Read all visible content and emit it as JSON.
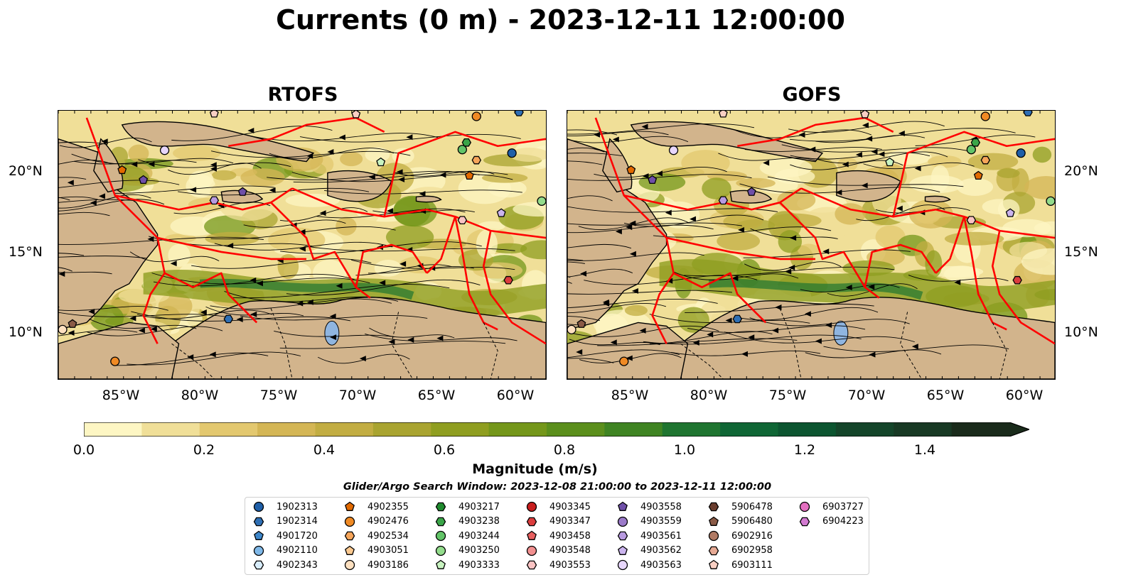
{
  "title": "Currents (0 m) - 2023-12-11 12:00:00",
  "panels": [
    {
      "title": "RTOFS"
    },
    {
      "title": "GOFS"
    }
  ],
  "axes": {
    "lat_labels": [
      "20°N",
      "15°N",
      "10°N"
    ],
    "lon_labels": [
      "85°W",
      "80°W",
      "75°W",
      "70°W",
      "65°W",
      "60°W"
    ]
  },
  "colorbar": {
    "label": "Magnitude (m/s)",
    "ticks": [
      "0.0",
      "0.2",
      "0.4",
      "0.6",
      "0.8",
      "1.0",
      "1.2",
      "1.4"
    ],
    "colors": [
      "#fdf6c3",
      "#f0df98",
      "#e3c86f",
      "#d4b655",
      "#c2ad42",
      "#a9a430",
      "#8f9e20",
      "#74971a",
      "#5b8f1c",
      "#3f8422",
      "#1f7530",
      "#0f6635",
      "#0c5530",
      "#14452a",
      "#183924",
      "#1a2b1b"
    ],
    "extend": "max"
  },
  "search_window": "Glider/Argo Search Window: 2023-12-08 21:00:00 to 2023-12-11 12:00:00",
  "legend": [
    {
      "id": "1902313",
      "color": "#1f5fa8",
      "shape": "circle"
    },
    {
      "id": "1902314",
      "color": "#2f6fb4",
      "shape": "hexagon"
    },
    {
      "id": "4901720",
      "color": "#3d86c9",
      "shape": "pentagon"
    },
    {
      "id": "4902110",
      "color": "#7fb8e8",
      "shape": "circle"
    },
    {
      "id": "4902343",
      "color": "#d7ecfb",
      "shape": "hexagon"
    },
    {
      "id": "4902355",
      "color": "#e26a00",
      "shape": "pentagon"
    },
    {
      "id": "4902476",
      "color": "#f08a24",
      "shape": "circle"
    },
    {
      "id": "4902534",
      "color": "#f6a55a",
      "shape": "hexagon"
    },
    {
      "id": "4903051",
      "color": "#fbc990",
      "shape": "pentagon"
    },
    {
      "id": "4903186",
      "color": "#fde0c0",
      "shape": "circle"
    },
    {
      "id": "4903217",
      "color": "#1f8a2e",
      "shape": "hexagon"
    },
    {
      "id": "4903238",
      "color": "#3aa548",
      "shape": "hexagon"
    },
    {
      "id": "4903244",
      "color": "#62c468",
      "shape": "circle"
    },
    {
      "id": "4903250",
      "color": "#93dc8c",
      "shape": "circle"
    },
    {
      "id": "4903333",
      "color": "#c8f3c0",
      "shape": "pentagon"
    },
    {
      "id": "4903345",
      "color": "#c81e1e",
      "shape": "circle"
    },
    {
      "id": "4903347",
      "color": "#db3d3d",
      "shape": "hexagon"
    },
    {
      "id": "4903458",
      "color": "#e86060",
      "shape": "pentagon"
    },
    {
      "id": "4903548",
      "color": "#f29090",
      "shape": "circle"
    },
    {
      "id": "4903553",
      "color": "#fac3c3",
      "shape": "hexagon"
    },
    {
      "id": "4903558",
      "color": "#6f4fa8",
      "shape": "pentagon"
    },
    {
      "id": "4903559",
      "color": "#9b7ac9",
      "shape": "circle"
    },
    {
      "id": "4903561",
      "color": "#b89ae0",
      "shape": "hexagon"
    },
    {
      "id": "4903562",
      "color": "#cbb4ee",
      "shape": "pentagon"
    },
    {
      "id": "4903563",
      "color": "#e7d6fb",
      "shape": "circle"
    },
    {
      "id": "5906478",
      "color": "#6a3d2e",
      "shape": "hexagon"
    },
    {
      "id": "5906480",
      "color": "#8a5a46",
      "shape": "pentagon"
    },
    {
      "id": "6902916",
      "color": "#b07a64",
      "shape": "circle"
    },
    {
      "id": "6902958",
      "color": "#e6a994",
      "shape": "hexagon"
    },
    {
      "id": "6903111",
      "color": "#f9cfc3",
      "shape": "pentagon"
    },
    {
      "id": "6903727",
      "color": "#e36fc0",
      "shape": "circle"
    },
    {
      "id": "6904223",
      "color": "#d27ad0",
      "shape": "hexagon"
    }
  ],
  "map_colors": {
    "land": "#d2b48c",
    "water_line": "#ff0000",
    "lake": "#8fb5e0"
  }
}
